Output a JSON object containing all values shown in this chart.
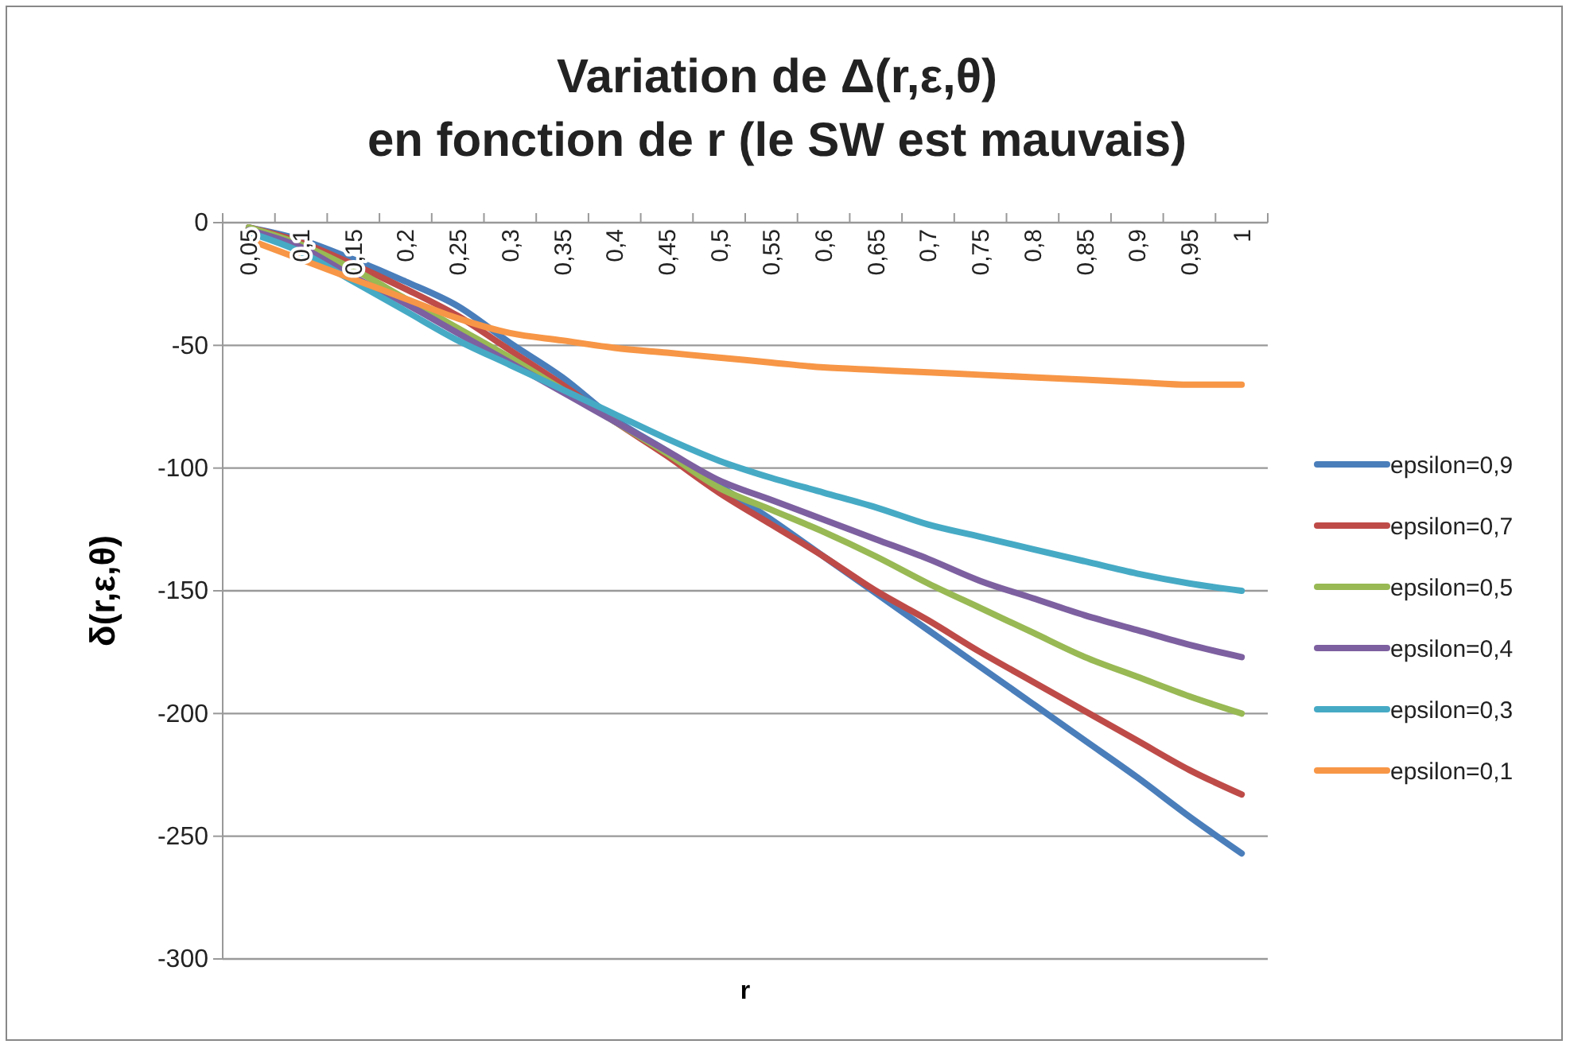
{
  "chart_data": {
    "type": "line",
    "title": "Variation de Δ(r,ε,θ)\nen fonction de r (le SW est mauvais)",
    "xlabel": "r",
    "ylabel": "δ(r,ε,θ)",
    "categories": [
      "0,05",
      "0,1",
      "0,15",
      "0,2",
      "0,25",
      "0,3",
      "0,35",
      "0,4",
      "0,45",
      "0,5",
      "0,55",
      "0,6",
      "0,65",
      "0,7",
      "0,75",
      "0,8",
      "0,85",
      "0,9",
      "0,95",
      "1"
    ],
    "series": [
      {
        "name": "epsilon=0,9",
        "color": "#4a7ebb",
        "values": [
          -2,
          -7,
          -15,
          -24,
          -34,
          -49,
          -63,
          -80,
          -93,
          -107,
          -121,
          -136,
          -151,
          -166,
          -181,
          -196,
          -211,
          -226,
          -242,
          -257
        ]
      },
      {
        "name": "epsilon=0,7",
        "color": "#be4b48",
        "values": [
          -2,
          -8,
          -17,
          -27,
          -38,
          -52,
          -66,
          -81,
          -95,
          -110,
          -123,
          -136,
          -150,
          -162,
          -175,
          -187,
          -199,
          -211,
          -223,
          -233
        ]
      },
      {
        "name": "epsilon=0,5",
        "color": "#98b954",
        "values": [
          -2,
          -9,
          -19,
          -31,
          -43,
          -55,
          -68,
          -81,
          -94,
          -108,
          -117,
          -126,
          -136,
          -147,
          -157,
          -167,
          -177,
          -185,
          -193,
          -200
        ]
      },
      {
        "name": "epsilon=0,4",
        "color": "#7d60a0",
        "values": [
          -3,
          -10,
          -22,
          -33,
          -45,
          -57,
          -69,
          -81,
          -93,
          -105,
          -113,
          -121,
          -129,
          -137,
          -146,
          -153,
          -160,
          -166,
          -172,
          -177
        ]
      },
      {
        "name": "epsilon=0,3",
        "color": "#46aac5",
        "values": [
          -4,
          -12,
          -24,
          -36,
          -48,
          -58,
          -68,
          -78,
          -88,
          -97,
          -104,
          -110,
          -116,
          -123,
          -128,
          -133,
          -138,
          -143,
          -147,
          -150
        ]
      },
      {
        "name": "epsilon=0,1",
        "color": "#f79646",
        "values": [
          -7,
          -15,
          -23,
          -31,
          -39,
          -45,
          -48,
          -51,
          -53,
          -55,
          -57,
          -59,
          -60,
          -61,
          -62,
          -63,
          -64,
          -65,
          -66,
          -66
        ]
      }
    ],
    "ylim": [
      -300,
      0
    ],
    "yticks": [
      -300,
      -250,
      -200,
      -150,
      -100,
      -50,
      0
    ],
    "grid": "y",
    "legend": "right",
    "marker": "none",
    "line_style": "solid"
  }
}
